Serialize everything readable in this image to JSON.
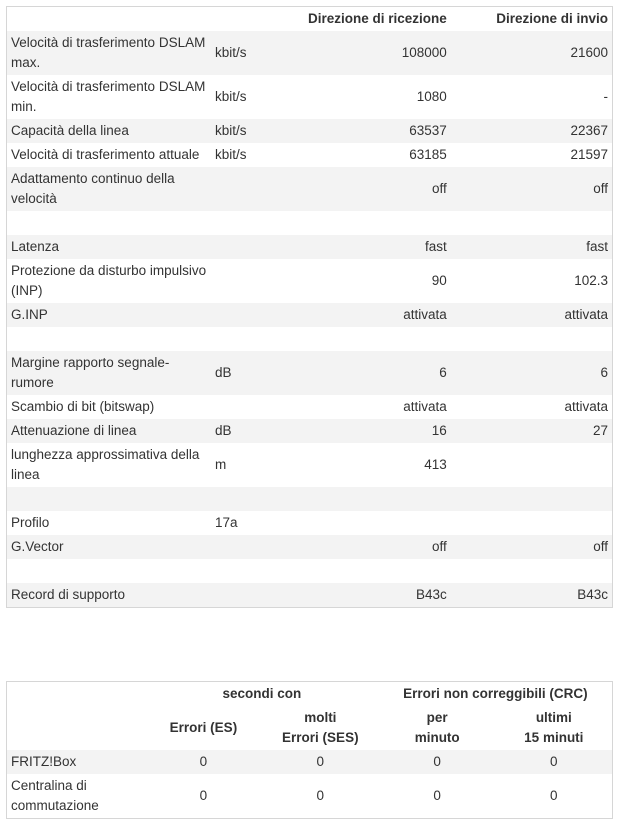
{
  "line_table": {
    "header": {
      "rx": "Direzione di ricezione",
      "tx": "Direzione di invio"
    },
    "groups": [
      [
        {
          "label": "Velocità di trasferimento DSLAM max.",
          "unit": "kbit/s",
          "rx": 108000,
          "tx": 21600
        },
        {
          "label": "Velocità di trasferimento DSLAM min.",
          "unit": "kbit/s",
          "rx": 1080,
          "tx": "-"
        },
        {
          "label": "Capacità della linea",
          "unit": "kbit/s",
          "rx": 63537,
          "tx": 22367
        },
        {
          "label": "Velocità di trasferimento attuale",
          "unit": "kbit/s",
          "rx": 63185,
          "tx": 21597
        },
        {
          "label": "Adattamento continuo della velocità",
          "rx": "off",
          "tx": "off"
        }
      ],
      [
        {
          "label": "Latenza",
          "rx": "fast",
          "tx": "fast"
        },
        {
          "label": "Protezione da disturbo impulsivo (INP)",
          "rx": 90,
          "tx": 102.3
        },
        {
          "label": "G.INP",
          "rx": "attivata",
          "tx": "attivata"
        }
      ],
      [
        {
          "label": "Margine rapporto segnale-rumore",
          "unit": "dB",
          "rx": 6,
          "tx": 6
        },
        {
          "label": "Scambio di bit (bitswap)",
          "rx": "attivata",
          "tx": "attivata"
        },
        {
          "label": "Attenuazione di linea",
          "unit": "dB",
          "rx": 16,
          "tx": 27
        },
        {
          "label": "lunghezza approssimativa della linea",
          "unit": "m",
          "rx": 413
        }
      ],
      [
        {
          "label": "Profilo",
          "unit": "17a"
        },
        {
          "label": "G.Vector",
          "rx": "off",
          "tx": "off"
        }
      ],
      [
        {
          "label": "Record di supporto",
          "rx": "B43c",
          "tx": "B43c"
        }
      ]
    ]
  },
  "error_table": {
    "header": {
      "group1": "secondi con",
      "group2": "Errori non correggibili (CRC)",
      "columns": [
        [
          "Errori (ES)"
        ],
        [
          "molti",
          "Errori (SES)"
        ],
        [
          "per",
          "minuto"
        ],
        [
          "ultimi",
          "15 minuti"
        ]
      ]
    },
    "rows": [
      {
        "label": "FRITZ!Box",
        "values": [
          0,
          0,
          0,
          0
        ]
      },
      {
        "label": "Centralina di commutazione",
        "values": [
          0,
          0,
          0,
          0
        ]
      }
    ]
  }
}
